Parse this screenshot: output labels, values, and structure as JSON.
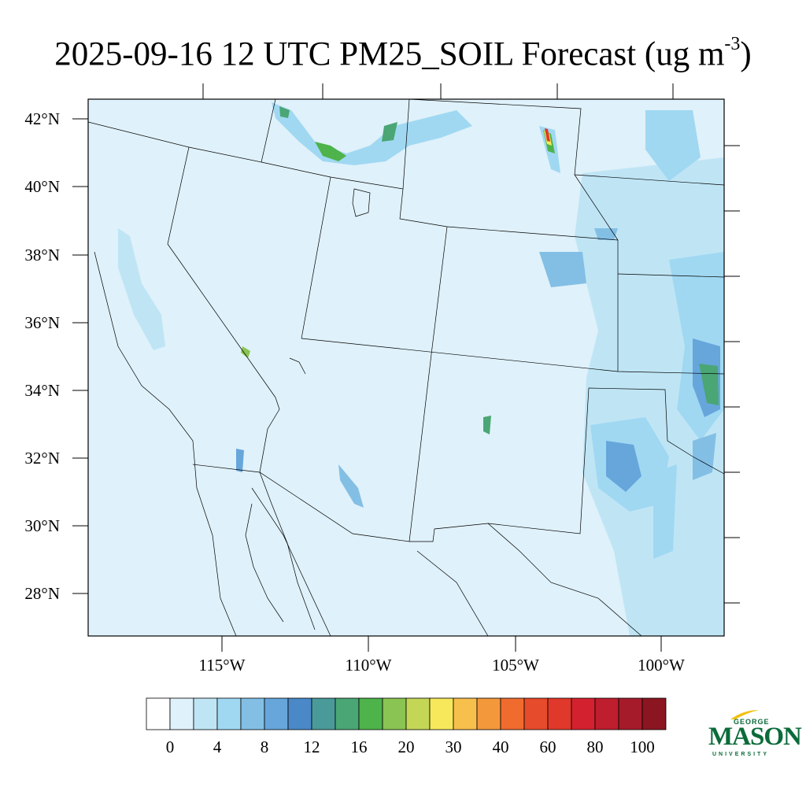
{
  "title": {
    "main": "2025-09-16 12 UTC PM25_SOIL Forecast (ug m",
    "exponent": "-3",
    "close": ")"
  },
  "map": {
    "background_color": "#dff1fa",
    "lat_labels": [
      "42°N",
      "40°N",
      "38°N",
      "36°N",
      "34°N",
      "32°N",
      "30°N",
      "28°N"
    ],
    "lon_labels": [
      "115°W",
      "110°W",
      "105°W",
      "100°W"
    ]
  },
  "colorbar": {
    "colors": [
      "#ffffff",
      "#dff1fa",
      "#bfe5f5",
      "#a0d8f2",
      "#83bfe5",
      "#66a6db",
      "#4a88c8",
      "#4a9a9a",
      "#4aa675",
      "#4db34a",
      "#8ac452",
      "#c4d656",
      "#f6e85a",
      "#f7bf4c",
      "#f4983c",
      "#f06b2e",
      "#e64b2b",
      "#e0382a",
      "#d42130",
      "#be1e2d",
      "#a51b2a",
      "#8b1520"
    ],
    "labels": [
      "0",
      "4",
      "8",
      "12",
      "16",
      "20",
      "30",
      "40",
      "60",
      "80",
      "100"
    ]
  },
  "logo": {
    "line1": "GEORGE",
    "line2": "MASON",
    "line3": "UNIVERSITY"
  }
}
